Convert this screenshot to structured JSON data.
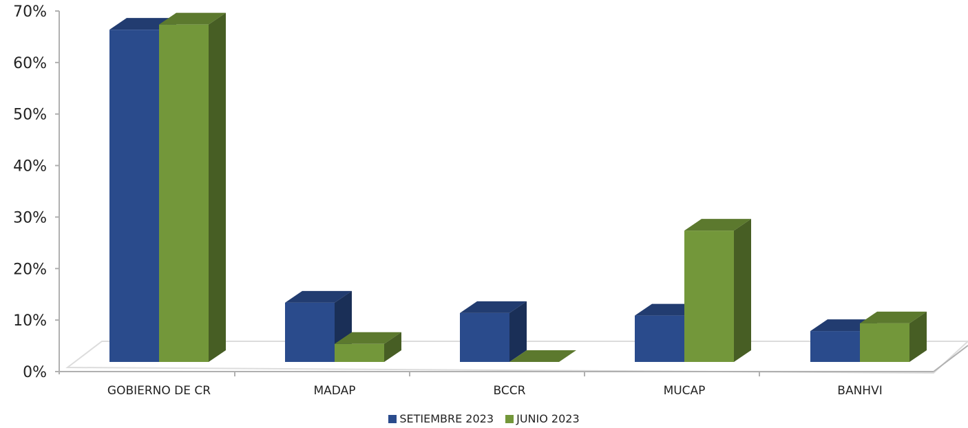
{
  "chart_data": {
    "type": "bar",
    "categories": [
      "GOBIERNO DE CR",
      "MADAP",
      "BCCR",
      "MUCAP",
      "BANHVI"
    ],
    "series": [
      {
        "name": "SETIEMBRE 2023",
        "color": "#2a4b8c",
        "values": [
          64.5,
          11.5,
          9.5,
          9.0,
          6.0
        ]
      },
      {
        "name": "JUNIO 2023",
        "color": "#73973a",
        "values": [
          65.5,
          3.5,
          0.0,
          25.5,
          7.5
        ]
      }
    ],
    "yticks": [
      "0%",
      "10%",
      "20%",
      "30%",
      "40%",
      "50%",
      "60%",
      "70%"
    ],
    "ylim": [
      0,
      70
    ],
    "three_d": true,
    "legend_position": "bottom"
  }
}
